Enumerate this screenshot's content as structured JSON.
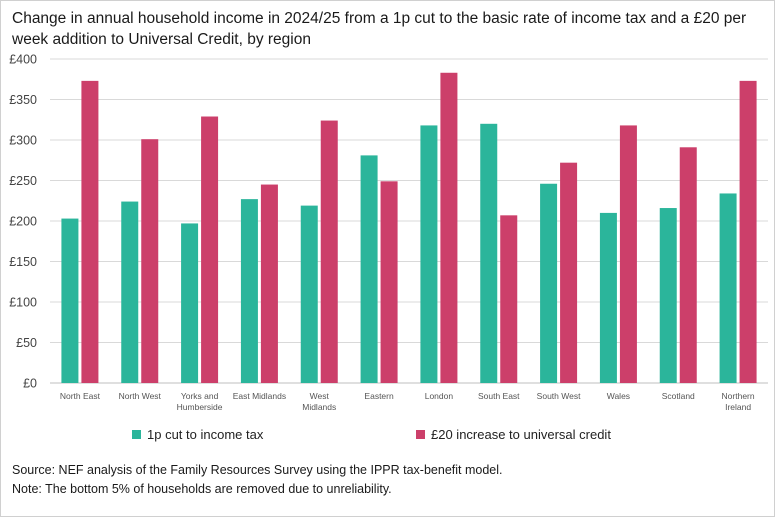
{
  "title": "Change in annual household income in 2024/25 from a 1p cut to the basic rate of income tax and a £20 per week addition to Universal Credit, by region",
  "source": "Source: NEF analysis of the Family Resources Survey using the IPPR tax-benefit model.",
  "note": "Note: The bottom 5% of households are removed due to unreliability.",
  "colors": {
    "tax": "#2bb59b",
    "uc": "#cc3f6a"
  },
  "chart_data": {
    "type": "bar",
    "ylim": [
      0,
      400
    ],
    "yticks": [
      0,
      50,
      100,
      150,
      200,
      250,
      300,
      350,
      400
    ],
    "ytick_labels": [
      "£0",
      "£50",
      "£100",
      "£150",
      "£200",
      "£250",
      "£300",
      "£350",
      "£400"
    ],
    "categories": [
      [
        "North East"
      ],
      [
        "North West"
      ],
      [
        "Yorks and",
        "Humberside"
      ],
      [
        "East Midlands"
      ],
      [
        "West",
        "Midlands"
      ],
      [
        "Eastern"
      ],
      [
        "London"
      ],
      [
        "South East"
      ],
      [
        "South West"
      ],
      [
        "Wales"
      ],
      [
        "Scotland"
      ],
      [
        "Northern",
        "Ireland"
      ]
    ],
    "series": [
      {
        "name": "1p cut to income tax",
        "color": "#2bb59b",
        "values": [
          203,
          224,
          197,
          227,
          219,
          281,
          318,
          320,
          246,
          210,
          216,
          234
        ]
      },
      {
        "name": "£20 increase to universal credit",
        "color": "#cc3f6a",
        "values": [
          373,
          301,
          329,
          245,
          324,
          249,
          383,
          207,
          272,
          318,
          291,
          373
        ]
      }
    ],
    "legend": "bottom",
    "grid": true
  }
}
